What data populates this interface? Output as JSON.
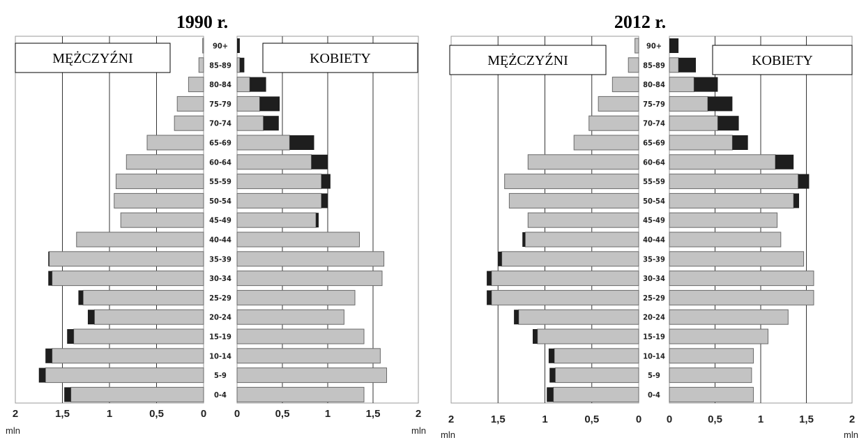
{
  "chart_data": [
    {
      "type": "bar",
      "title": "1990 r.",
      "left_label": "MĘŻCZYŹNI",
      "right_label": "KOBIETY",
      "x_ticks_left": [
        "2",
        "1,5",
        "1",
        "0,5",
        "0"
      ],
      "x_ticks_right": [
        "0",
        "0,5",
        "1",
        "1,5",
        "2"
      ],
      "unit_left": "mln",
      "unit_right": "mln",
      "xlim": [
        0,
        2
      ],
      "categories": [
        "90+",
        "85-89",
        "80-84",
        "75-79",
        "70-74",
        "65-69",
        "60-64",
        "55-59",
        "50-54",
        "45-49",
        "40-44",
        "35-39",
        "30-34",
        "25-29",
        "20-24",
        "15-19",
        "10-14",
        "5-9",
        "0-4"
      ],
      "series": [
        {
          "group": "men",
          "values": [
            0.01,
            0.05,
            0.16,
            0.28,
            0.31,
            0.6,
            0.82,
            0.93,
            0.95,
            0.88,
            1.35,
            1.65,
            1.65,
            1.33,
            1.23,
            1.45,
            1.68,
            1.75,
            1.48
          ]
        },
        {
          "group": "men-highlight",
          "values": [
            0,
            0,
            0,
            0,
            0,
            0,
            0,
            0,
            0,
            0,
            0,
            0.01,
            0.04,
            0.05,
            0.07,
            0.07,
            0.07,
            0.07,
            0.07
          ]
        },
        {
          "group": "women",
          "values": [
            0.03,
            0.08,
            0.32,
            0.47,
            0.46,
            0.85,
            1.0,
            1.03,
            1.0,
            0.9,
            1.35,
            1.62,
            1.6,
            1.3,
            1.18,
            1.4,
            1.58,
            1.65,
            1.4
          ]
        },
        {
          "group": "women-highlight",
          "values": [
            0.03,
            0.05,
            0.18,
            0.22,
            0.17,
            0.27,
            0.18,
            0.1,
            0.07,
            0.03,
            0,
            0,
            0,
            0,
            0,
            0,
            0,
            0,
            0
          ]
        }
      ]
    },
    {
      "type": "bar",
      "title": "2012 r.",
      "left_label": "MĘŻCZYŹNI",
      "right_label": "KOBIETY",
      "x_ticks_left": [
        "2",
        "1,5",
        "1",
        "0,5",
        "0"
      ],
      "x_ticks_right": [
        "0",
        "0,5",
        "1",
        "1,5",
        "2"
      ],
      "unit_left": "mln",
      "unit_right": "mln",
      "xlim": [
        0,
        2
      ],
      "categories": [
        "90+",
        "85-89",
        "80-84",
        "75-79",
        "70-74",
        "65-69",
        "60-64",
        "55-59",
        "50-54",
        "45-49",
        "40-44",
        "35-39",
        "30-34",
        "25-29",
        "20-24",
        "15-19",
        "10-14",
        "5-9",
        "0-4"
      ],
      "series": [
        {
          "group": "men",
          "values": [
            0.04,
            0.11,
            0.28,
            0.43,
            0.53,
            0.69,
            1.18,
            1.43,
            1.38,
            1.18,
            1.24,
            1.5,
            1.62,
            1.62,
            1.33,
            1.13,
            0.96,
            0.95,
            0.98
          ]
        },
        {
          "group": "men-highlight",
          "values": [
            0,
            0,
            0,
            0,
            0,
            0,
            0,
            0,
            0,
            0,
            0.03,
            0.04,
            0.05,
            0.05,
            0.05,
            0.05,
            0.06,
            0.06,
            0.07
          ]
        },
        {
          "group": "women",
          "values": [
            0.1,
            0.29,
            0.53,
            0.69,
            0.76,
            0.86,
            1.36,
            1.53,
            1.42,
            1.18,
            1.22,
            1.47,
            1.58,
            1.58,
            1.3,
            1.08,
            0.92,
            0.9,
            0.92
          ]
        },
        {
          "group": "women-highlight",
          "values": [
            0.1,
            0.19,
            0.26,
            0.27,
            0.23,
            0.17,
            0.2,
            0.12,
            0.06,
            0,
            0,
            0,
            0,
            0,
            0,
            0,
            0,
            0,
            0
          ]
        }
      ]
    }
  ]
}
